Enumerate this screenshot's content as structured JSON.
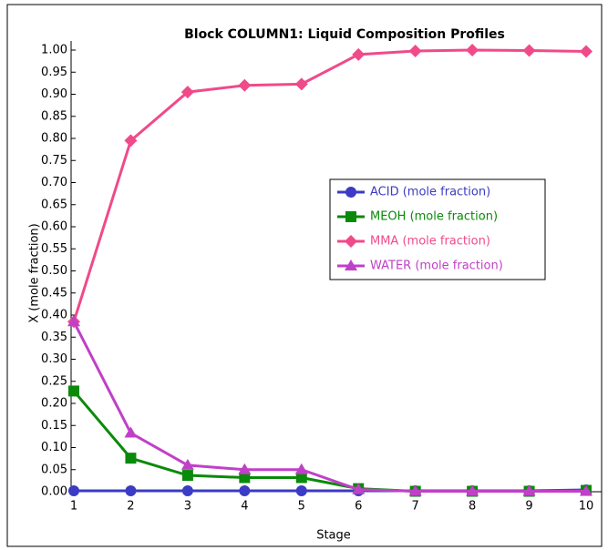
{
  "chart_data": {
    "type": "line",
    "title": "Block COLUMN1: Liquid Composition Profiles",
    "x_label": "Stage",
    "y_label": "X (mole fraction)",
    "x": [
      1,
      2,
      3,
      4,
      5,
      6,
      7,
      8,
      9,
      10
    ],
    "xlim": [
      1,
      10
    ],
    "xticks": [
      1,
      2,
      3,
      4,
      5,
      6,
      7,
      8,
      9,
      10
    ],
    "ylim": [
      0,
      1
    ],
    "yticks": [
      {
        "value": 0,
        "label": "0.00"
      },
      {
        "value": 0.05,
        "label": "0.05"
      },
      {
        "value": 0.1,
        "label": "0.10"
      },
      {
        "value": 0.15,
        "label": "0.15"
      },
      {
        "value": 0.2,
        "label": "0.20"
      },
      {
        "value": 0.25,
        "label": "0.25"
      },
      {
        "value": 0.3,
        "label": "0.30"
      },
      {
        "value": 0.35,
        "label": "0.35"
      },
      {
        "value": 0.4,
        "label": "0.40"
      },
      {
        "value": 0.45,
        "label": "0.45"
      },
      {
        "value": 0.5,
        "label": "0.50"
      },
      {
        "value": 0.55,
        "label": "0.55"
      },
      {
        "value": 0.6,
        "label": "0.60"
      },
      {
        "value": 0.65,
        "label": "0.65"
      },
      {
        "value": 0.7,
        "label": "0.70"
      },
      {
        "value": 0.75,
        "label": "0.75"
      },
      {
        "value": 0.8,
        "label": "0.80"
      },
      {
        "value": 0.85,
        "label": "0.85"
      },
      {
        "value": 0.9,
        "label": "0.90"
      },
      {
        "value": 0.95,
        "label": "0.95"
      },
      {
        "value": 1,
        "label": "1.00"
      }
    ],
    "legend": "right",
    "series": [
      {
        "name": "ACID (mole fraction)",
        "color": "#3b3bc4",
        "marker": "circle",
        "values": [
          0.002,
          0.002,
          0.002,
          0.002,
          0.002,
          0.002,
          0.002,
          0.002,
          0.002,
          0.004
        ]
      },
      {
        "name": "MEOH (mole fraction)",
        "color": "#0a8a0a",
        "marker": "square",
        "values": [
          0.228,
          0.076,
          0.037,
          0.032,
          0.032,
          0.007,
          0.001,
          0.001,
          0.001,
          0.003
        ]
      },
      {
        "name": "MMA (mole fraction)",
        "color": "#f04a8a",
        "marker": "diamond",
        "values": [
          0.385,
          0.795,
          0.905,
          0.92,
          0.923,
          0.99,
          0.998,
          1.0,
          0.999,
          0.997
        ]
      },
      {
        "name": "WATER (mole fraction)",
        "color": "#c040c8",
        "marker": "triangle",
        "values": [
          0.385,
          0.133,
          0.06,
          0.05,
          0.05,
          0.005,
          0.001,
          0.001,
          0.001,
          0.001
        ]
      }
    ]
  }
}
